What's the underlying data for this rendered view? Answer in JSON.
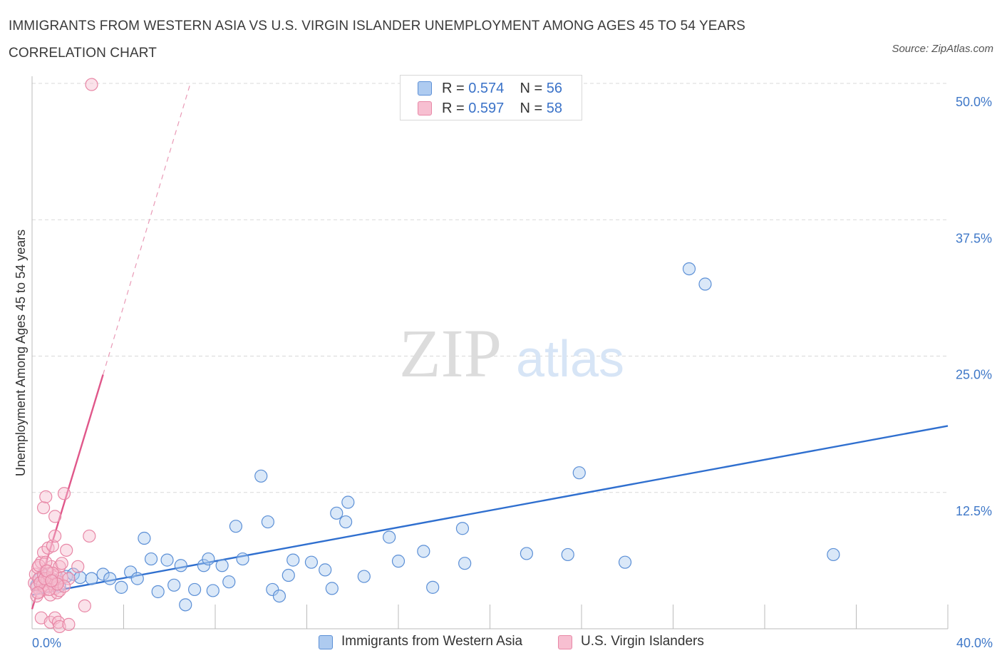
{
  "chart_data": {
    "type": "scatter",
    "title": "IMMIGRANTS FROM WESTERN ASIA VS U.S. VIRGIN ISLANDER UNEMPLOYMENT AMONG AGES 45 TO 54 YEARS CORRELATION CHART",
    "source": "Source: ZipAtlas.com",
    "watermark": {
      "zip": "ZIP",
      "atlas": "atlas"
    },
    "ylabel": "Unemployment Among Ages 45 to 54 years",
    "xlim": [
      0,
      40
    ],
    "ylim": [
      0,
      50
    ],
    "x_tick_labels": {
      "min": "0.0%",
      "max": "40.0%"
    },
    "y_ticks": [
      {
        "value": 12.5,
        "label": "12.5%"
      },
      {
        "value": 25.0,
        "label": "25.0%"
      },
      {
        "value": 37.5,
        "label": "37.5%"
      },
      {
        "value": 50.0,
        "label": "50.0%"
      }
    ],
    "x_tick_marks": [
      0,
      4,
      8,
      12,
      16,
      20,
      24,
      28,
      32,
      36,
      40
    ],
    "grid": true,
    "legend_position": "top-center",
    "series": [
      {
        "name": "Immigrants from Western Asia",
        "color": "#5b8fd6",
        "fill": "#aecbf0",
        "r_label": "R = ",
        "r_value": "0.574",
        "n_label": "N = ",
        "n_value": "56",
        "trend": {
          "x": [
            0,
            40
          ],
          "y": [
            3.1,
            18.6
          ],
          "style": "solid",
          "color": "#2f6fcf"
        },
        "points": [
          [
            0.3,
            4.5
          ],
          [
            0.5,
            5.0
          ],
          [
            0.8,
            4.6
          ],
          [
            1.0,
            4.2
          ],
          [
            1.5,
            4.8
          ],
          [
            1.8,
            5.0
          ],
          [
            2.1,
            4.7
          ],
          [
            2.6,
            4.6
          ],
          [
            3.1,
            5.0
          ],
          [
            3.4,
            4.6
          ],
          [
            3.9,
            3.8
          ],
          [
            4.3,
            5.2
          ],
          [
            4.6,
            4.6
          ],
          [
            4.9,
            8.3
          ],
          [
            5.2,
            6.4
          ],
          [
            5.5,
            3.4
          ],
          [
            5.9,
            6.3
          ],
          [
            6.2,
            4.0
          ],
          [
            6.5,
            5.8
          ],
          [
            6.7,
            2.2
          ],
          [
            7.1,
            3.6
          ],
          [
            7.5,
            5.8
          ],
          [
            7.7,
            6.4
          ],
          [
            7.9,
            3.5
          ],
          [
            8.3,
            5.8
          ],
          [
            8.6,
            4.3
          ],
          [
            8.9,
            9.4
          ],
          [
            9.2,
            6.4
          ],
          [
            10.0,
            14.0
          ],
          [
            10.3,
            9.8
          ],
          [
            10.5,
            3.6
          ],
          [
            10.8,
            3.0
          ],
          [
            11.2,
            4.9
          ],
          [
            11.4,
            6.3
          ],
          [
            12.2,
            6.1
          ],
          [
            12.8,
            5.4
          ],
          [
            13.1,
            3.7
          ],
          [
            13.3,
            10.6
          ],
          [
            13.7,
            9.8
          ],
          [
            13.8,
            11.6
          ],
          [
            14.5,
            4.8
          ],
          [
            15.6,
            8.4
          ],
          [
            16.0,
            6.2
          ],
          [
            17.1,
            7.1
          ],
          [
            17.5,
            3.8
          ],
          [
            18.8,
            9.2
          ],
          [
            18.9,
            6.0
          ],
          [
            21.6,
            6.9
          ],
          [
            23.4,
            6.8
          ],
          [
            23.9,
            14.3
          ],
          [
            25.9,
            6.1
          ],
          [
            28.7,
            33.0
          ],
          [
            29.4,
            31.6
          ],
          [
            35.0,
            6.8
          ],
          [
            0.2,
            4.0
          ],
          [
            1.2,
            3.9
          ]
        ]
      },
      {
        "name": "U.S. Virgin Islanders",
        "color": "#e887a6",
        "fill": "#f7bfd1",
        "r_label": "R = ",
        "r_value": "0.597",
        "n_label": "N = ",
        "n_value": "58",
        "trend": {
          "x": [
            0,
            3.1
          ],
          "y": [
            1.8,
            23.3
          ],
          "style": "solid",
          "color": "#e0578a"
        },
        "trend_extension": {
          "x": [
            3.1,
            6.9
          ],
          "y": [
            23.3,
            49.9
          ],
          "style": "dashed",
          "color": "#e99ab6"
        },
        "points": [
          [
            0.1,
            4.2
          ],
          [
            0.15,
            5.0
          ],
          [
            0.2,
            3.8
          ],
          [
            0.25,
            5.6
          ],
          [
            0.3,
            4.6
          ],
          [
            0.35,
            3.4
          ],
          [
            0.4,
            6.1
          ],
          [
            0.45,
            4.0
          ],
          [
            0.5,
            4.9
          ],
          [
            0.55,
            3.6
          ],
          [
            0.6,
            5.3
          ],
          [
            0.65,
            4.4
          ],
          [
            0.7,
            3.9
          ],
          [
            0.75,
            4.7
          ],
          [
            0.8,
            3.1
          ],
          [
            0.85,
            5.7
          ],
          [
            0.9,
            4.1
          ],
          [
            0.95,
            4.5
          ],
          [
            1.0,
            3.7
          ],
          [
            1.05,
            4.9
          ],
          [
            1.1,
            3.3
          ],
          [
            1.15,
            4.3
          ],
          [
            1.2,
            3.5
          ],
          [
            1.3,
            4.7
          ],
          [
            0.3,
            5.8
          ],
          [
            0.5,
            7.0
          ],
          [
            0.6,
            6.1
          ],
          [
            0.7,
            7.4
          ],
          [
            0.9,
            7.6
          ],
          [
            1.0,
            10.3
          ],
          [
            1.2,
            5.7
          ],
          [
            1.3,
            6.0
          ],
          [
            1.5,
            7.2
          ],
          [
            1.4,
            12.4
          ],
          [
            1.6,
            4.6
          ],
          [
            1.4,
            3.9
          ],
          [
            0.5,
            11.1
          ],
          [
            0.6,
            12.1
          ],
          [
            1.0,
            8.5
          ],
          [
            2.5,
            8.5
          ],
          [
            2.6,
            49.9
          ],
          [
            2.0,
            5.7
          ],
          [
            0.4,
            1.0
          ],
          [
            0.8,
            0.6
          ],
          [
            1.0,
            1.0
          ],
          [
            1.15,
            0.6
          ],
          [
            1.2,
            0.2
          ],
          [
            1.6,
            0.4
          ],
          [
            2.3,
            2.1
          ],
          [
            0.2,
            3.0
          ],
          [
            0.35,
            4.2
          ],
          [
            0.55,
            4.6
          ],
          [
            0.75,
            3.6
          ],
          [
            0.9,
            5.1
          ],
          [
            1.1,
            4.1
          ],
          [
            0.25,
            3.3
          ],
          [
            0.65,
            5.3
          ],
          [
            0.85,
            4.4
          ]
        ]
      }
    ]
  }
}
